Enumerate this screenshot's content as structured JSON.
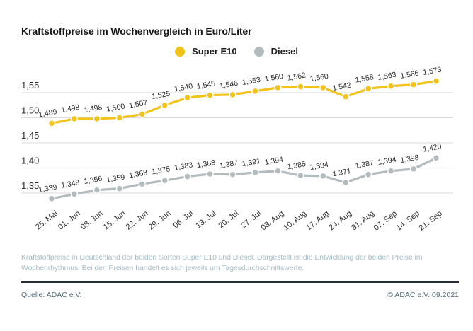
{
  "chart_data": {
    "type": "line",
    "title": "Kraftstoffpreise im Wochenvergleich in Euro/Liter",
    "categories": [
      "25. Mai",
      "01. Jun",
      "08. Jun",
      "15. Jun",
      "22. Jun",
      "29. Jun",
      "06. Jul",
      "13. Jul",
      "20. Jul",
      "27. Jul",
      "03. Aug",
      "10. Aug",
      "17. Aug",
      "24. Aug",
      "31. Aug",
      "07. Sep",
      "14. Sep",
      "21. Sep"
    ],
    "series": [
      {
        "name": "Super E10",
        "color": "#f2c319",
        "values": [
          1.489,
          1.498,
          1.498,
          1.5,
          1.507,
          1.525,
          1.54,
          1.545,
          1.546,
          1.553,
          1.56,
          1.562,
          1.56,
          1.542,
          1.558,
          1.563,
          1.566,
          1.573
        ]
      },
      {
        "name": "Diesel",
        "color": "#b2bcbf",
        "values": [
          1.339,
          1.348,
          1.356,
          1.359,
          1.368,
          1.375,
          1.383,
          1.388,
          1.387,
          1.391,
          1.394,
          1.385,
          1.384,
          1.371,
          1.387,
          1.394,
          1.398,
          1.42
        ]
      }
    ],
    "xlabel": "",
    "ylabel": "Euro/Liter",
    "y_ticks": [
      1.55,
      1.5,
      1.45,
      1.4,
      1.35
    ],
    "ylim": [
      1.32,
      1.58
    ],
    "grid": true,
    "legend_position": "top",
    "decimal_separator": ","
  },
  "footnote": {
    "text": "Kraftstoffpreise in Deutschland der beiden Sorten Super E10 und Diesel. Dargestellt ist die Entwicklung der beiden Preise im Wochenrhythmus. Bei den Preisen handelt es sich jeweils um Tagesdurchschnittswerte."
  },
  "footer": {
    "source": "Quelle: ADAC e.V.",
    "copyright": "© ADAC e.V. 09.2021"
  }
}
